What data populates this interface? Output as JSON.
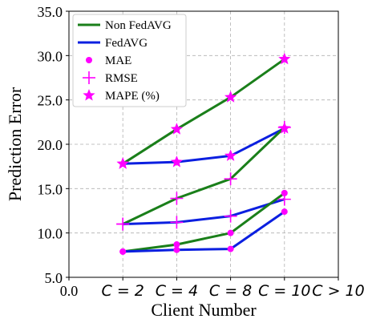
{
  "chart_data": {
    "type": "line",
    "xlabel": "Client Number",
    "ylabel": "Prediction Error",
    "ylim": [
      5.0,
      35.0
    ],
    "y_ticks": [
      "5.0",
      "10.0",
      "15.0",
      "20.0",
      "25.0",
      "30.0",
      "35.0"
    ],
    "x_tick_labels": [
      "0.0",
      "C = 2",
      "C = 4",
      "C = 8",
      "C = 10",
      "C > 10"
    ],
    "categories": [
      "C = 2",
      "C = 4",
      "C = 8",
      "C = 10"
    ],
    "grid": true,
    "legend_position": "top-left",
    "legend": [
      {
        "label": "Non FedAVG",
        "kind": "line",
        "color": "#1a7f1a"
      },
      {
        "label": "FedAVG",
        "kind": "line",
        "color": "#0b1fe0"
      },
      {
        "label": "MAE",
        "kind": "dot",
        "color": "#ff00ff"
      },
      {
        "label": "RMSE",
        "kind": "plus",
        "color": "#ff00ff"
      },
      {
        "label": "MAPE (%)",
        "kind": "star",
        "color": "#ff00ff"
      }
    ],
    "series": [
      {
        "method": "Non FedAVG",
        "metric": "MAPE (%)",
        "values": [
          17.8,
          21.7,
          25.3,
          29.6
        ]
      },
      {
        "method": "FedAVG",
        "metric": "MAPE (%)",
        "values": [
          17.8,
          18.0,
          18.7,
          21.8
        ]
      },
      {
        "method": "Non FedAVG",
        "metric": "RMSE",
        "values": [
          11.0,
          13.9,
          16.1,
          21.9
        ]
      },
      {
        "method": "FedAVG",
        "metric": "RMSE",
        "values": [
          11.0,
          11.2,
          11.9,
          13.8
        ]
      },
      {
        "method": "Non FedAVG",
        "metric": "MAE",
        "values": [
          7.9,
          8.7,
          10.0,
          14.5
        ]
      },
      {
        "method": "FedAVG",
        "metric": "MAE",
        "values": [
          7.9,
          8.1,
          8.2,
          12.4
        ]
      }
    ]
  }
}
